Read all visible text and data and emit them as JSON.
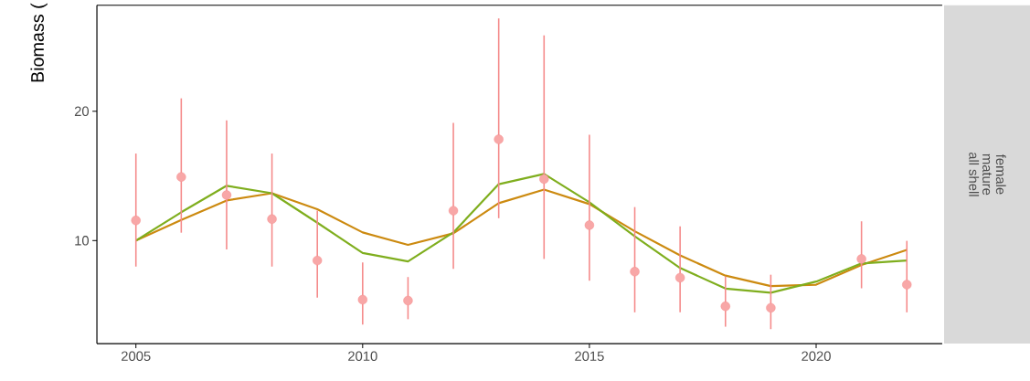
{
  "chart_data": {
    "type": "scatter",
    "ylabel": "Biomass (",
    "annotations": [
      "female",
      "mature",
      "all shell"
    ],
    "xlim": [
      2004.14,
      2022.78
    ],
    "xticks": [
      2005,
      2010,
      2015,
      2020
    ],
    "ylim": [
      2.03,
      28.2
    ],
    "yticks": [
      10,
      20
    ],
    "grid": false,
    "series": [
      {
        "marker": "circle",
        "color": "#f58a8a",
        "x": [
          2005,
          2006,
          2007,
          2008,
          2009,
          2010,
          2011,
          2012,
          2013,
          2014,
          2015,
          2016,
          2017,
          2018,
          2019,
          2021,
          2022
        ],
        "values": [
          11.56,
          14.92,
          13.52,
          11.66,
          8.46,
          5.43,
          5.36,
          12.31,
          17.83,
          14.76,
          11.19,
          7.6,
          7.13,
          4.92,
          4.8,
          8.58,
          6.59
        ],
        "errors": [
          [
            7.99,
            16.73
          ],
          [
            10.61,
            21.0
          ],
          [
            9.32,
            19.3
          ],
          [
            7.99,
            16.73
          ],
          [
            5.59,
            12.31
          ],
          [
            3.5,
            8.3
          ],
          [
            3.92,
            7.18
          ],
          [
            7.81,
            19.11
          ],
          [
            11.73,
            27.18
          ],
          [
            8.58,
            25.87
          ],
          [
            6.9,
            18.18
          ],
          [
            4.45,
            12.59
          ],
          [
            4.45,
            11.1
          ],
          [
            3.34,
            7.22
          ],
          [
            3.15,
            7.36
          ],
          [
            6.31,
            11.49
          ],
          [
            4.45,
            9.98
          ]
        ]
      },
      {
        "type": "line",
        "marker": "none",
        "line_style": "solid",
        "color": "#cc8a10",
        "x": [
          2005,
          2006,
          2007,
          2008,
          2009,
          2010,
          2011,
          2012,
          2013,
          2014,
          2015,
          2016,
          2017,
          2018,
          2019,
          2020,
          2021,
          2022
        ],
        "values": [
          10.0,
          11.6,
          13.1,
          13.66,
          12.43,
          10.63,
          9.67,
          10.56,
          12.89,
          13.94,
          12.82,
          10.72,
          8.86,
          7.29,
          6.48,
          6.59,
          8.11,
          9.28
        ]
      },
      {
        "type": "line",
        "marker": "none",
        "line_style": "solid",
        "color": "#7fae1e",
        "x": [
          2005,
          2006,
          2007,
          2008,
          2009,
          2010,
          2011,
          2012,
          2013,
          2014,
          2015,
          2016,
          2017,
          2018,
          2019,
          2020,
          2021,
          2022
        ],
        "values": [
          10.0,
          12.19,
          14.24,
          13.66,
          11.38,
          9.04,
          8.39,
          10.63,
          14.36,
          15.15,
          12.96,
          10.33,
          7.88,
          6.29,
          5.97,
          6.83,
          8.23,
          8.46
        ]
      }
    ]
  }
}
